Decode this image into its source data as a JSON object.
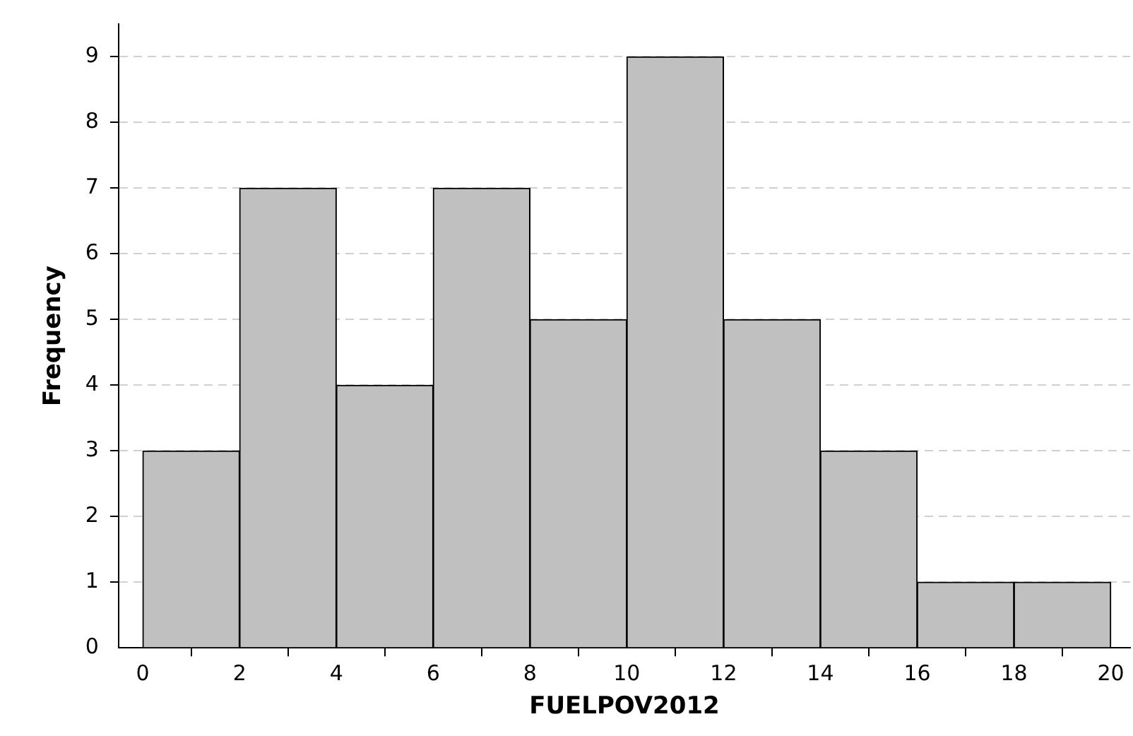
{
  "chart_data": {
    "type": "histogram",
    "xlabel": "FUELPOV2012",
    "ylabel": "Frequency",
    "bins": [
      0,
      2,
      4,
      6,
      8,
      10,
      12,
      14,
      16,
      18,
      20
    ],
    "values": [
      3,
      7,
      4,
      7,
      5,
      9,
      5,
      3,
      1,
      1
    ],
    "color": "#c0c0c0",
    "xlim": [
      -0.5,
      20.4
    ],
    "xticks": [
      0,
      2,
      4,
      6,
      8,
      10,
      12,
      14,
      16,
      18,
      20
    ],
    "ylim": [
      0,
      9.5
    ],
    "yticks": [
      0,
      1,
      2,
      3,
      4,
      5,
      6,
      7,
      8,
      9
    ],
    "grid": "y",
    "legend": false
  }
}
